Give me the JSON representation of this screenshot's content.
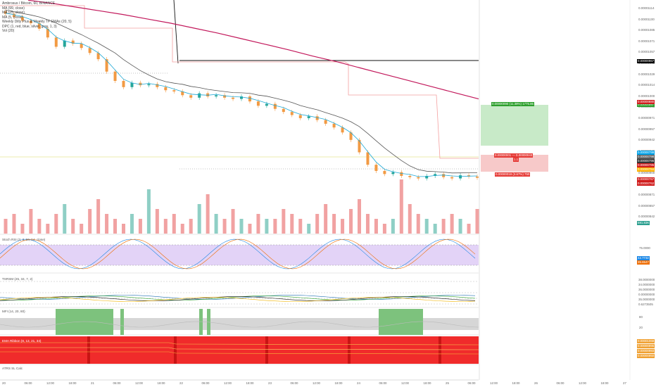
{
  "header": {
    "legend": [
      "Ambrosus / Bitcoin, 60, BINANCE",
      "MA (99, close)",
      "MA (25, close)",
      "MA (5, close)",
      "Weekly Dilly Plus & Weekly TF EMAs (20, 5)",
      "DPC (1, red, blue, silver, gray, 1, 3)",
      "Vol (20)"
    ]
  },
  "panes": {
    "stoch": {
      "label": "Stoch RSI (3, 3, 14, 14, close)",
      "value_k": "42.7732",
      "value_d": "35.6547",
      "level_hi": "75.0000",
      "level_lo": "20.0000"
    },
    "tsrsm": {
      "label": "TSRSM (25, 34, 7, 2)",
      "values": [
        "38.0000000",
        "34.0000000",
        "36.0000000",
        "0.00000000",
        "35.0000000",
        "0.6273505"
      ]
    },
    "mfi": {
      "label": "MFI (14, 20, 80)",
      "level_hi": "80",
      "level_lo": "20"
    },
    "ribbon": {
      "label": "EMA Ribbon (8, 13, 21, 34)",
      "values": [
        "0.00001068",
        "0.00000995",
        "0.00000993",
        "0.00000950"
      ]
    },
    "atr": {
      "label": "ATRS SL Calc"
    }
  },
  "position": {
    "target_label": "0.00000090 (11.38%) 1775.86",
    "entry_label": "0.00000001 — 0.00000043",
    "entry_sub": "1.1",
    "stop_label": "0.00000019 (3.67%) 750"
  },
  "volume_label": "591.83K",
  "price_axis": [
    "0.00001114",
    "0.00001100",
    "0.00001085",
    "0.00001071",
    "0.00001057",
    "0.00001043",
    "0.00001029",
    "0.00001014",
    "0.00001000",
    "0.00000985",
    "0.00000971",
    "0.00000957",
    "0.00000942",
    "0.00000928",
    "0.00000914",
    "0.00000900",
    "0.00000885",
    "0.00000871",
    "0.00000857",
    "0.00000842"
  ],
  "price_tags": [
    {
      "text": "0.00000967",
      "color": "#000000"
    },
    {
      "text": "0.00000897",
      "color": "#2c9f2c"
    },
    {
      "text": "0.00000880",
      "color": "#d01c1c"
    },
    {
      "text": "0.00000799",
      "color": "#00a2e8"
    },
    {
      "text": "0.00000798",
      "color": "#5a5a5a"
    },
    {
      "text": "0.00000796",
      "color": "#333333"
    },
    {
      "text": "0.00000785",
      "color": "#d01c1c"
    },
    {
      "text": "0.00000784",
      "color": "#ffb300"
    },
    {
      "text": "0.00000767",
      "color": "#d01c1c"
    },
    {
      "text": "0.00000762",
      "color": "#d01c1c"
    }
  ],
  "time_axis": [
    "20",
    "06:00",
    "12:00",
    "18:00",
    "21",
    "06:00",
    "12:00",
    "18:00",
    "22",
    "06:00",
    "12:00",
    "18:00",
    "23",
    "06:00",
    "12:00",
    "18:00",
    "24",
    "06:00",
    "12:00",
    "18:00",
    "25",
    "06:00",
    "12:00",
    "18:00",
    "26",
    "06:00",
    "12:00",
    "18:00",
    "27"
  ],
  "colors": {
    "up": "#26a69a",
    "down": "#f29a43",
    "ma99": "#c2185b",
    "ma25": "#555555",
    "ma5": "#1ea9d6",
    "target_fill": "#c8eac8",
    "stop_fill": "#f7c9c9",
    "vol_up": "#8fcfc5",
    "vol_down": "#f1a2a2",
    "stoch_bg": "#e3d3f7",
    "ribbon": "#f02b2b",
    "mfi_band": "#d6d6d6"
  },
  "chart_data": {
    "type": "candlestick",
    "title": "Ambrosus / Bitcoin, 60, BINANCE",
    "close_series": [
      1103,
      1098,
      1092,
      1088,
      1079,
      1065,
      1050,
      1060,
      1055,
      1048,
      1040,
      1030,
      1010,
      995,
      985,
      992,
      988,
      990,
      985,
      980,
      978,
      972,
      968,
      975,
      970,
      972,
      968,
      966,
      970,
      962,
      955,
      958,
      950,
      945,
      940,
      935,
      938,
      932,
      926,
      920,
      912,
      900,
      880,
      860,
      850,
      845,
      848,
      842,
      840,
      838,
      842,
      845,
      840,
      838,
      843,
      841,
      839
    ],
    "ma99": [
      1125,
      1120,
      1114,
      1108,
      1102,
      1095,
      1088,
      1080,
      1072,
      1063,
      1054,
      1045,
      1035,
      1026,
      1016,
      1006,
      996,
      986,
      976,
      966
    ],
    "volume": [
      3,
      4,
      2,
      5,
      3,
      2,
      4,
      6,
      3,
      2,
      5,
      7,
      4,
      3,
      2,
      4,
      3,
      9,
      5,
      3,
      4,
      2,
      3,
      6,
      8,
      4,
      3,
      5,
      3,
      2,
      4,
      3,
      3,
      5,
      4,
      3,
      2,
      4,
      6,
      4,
      3,
      5,
      7,
      4,
      3,
      2,
      3,
      11,
      6,
      4,
      3,
      2,
      3,
      4,
      3,
      2,
      5
    ],
    "ylim": [
      8.42e-06,
      1.114e-05
    ]
  }
}
